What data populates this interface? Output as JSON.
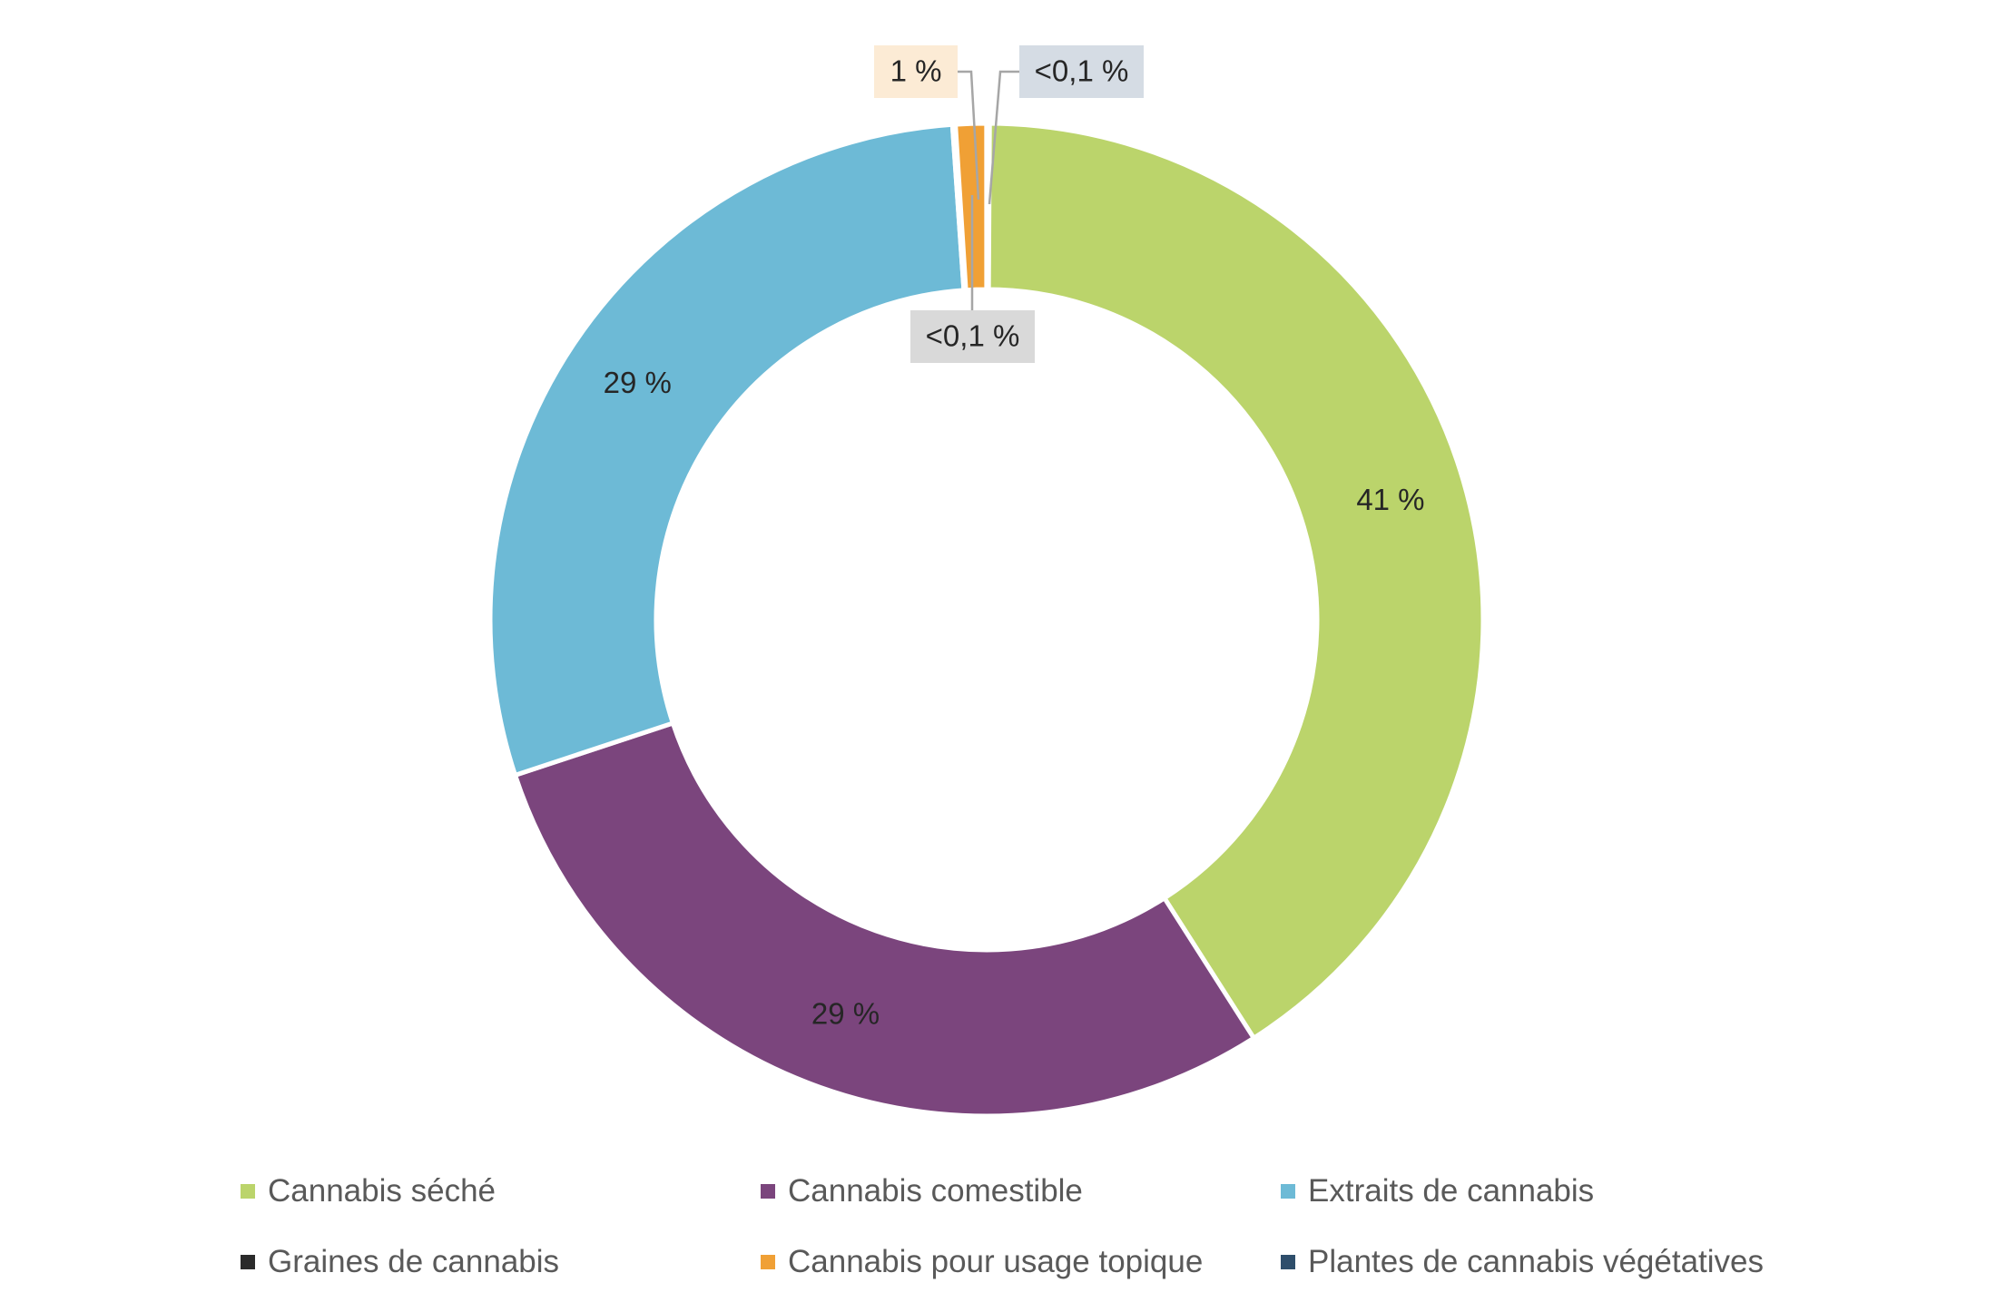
{
  "chart_data": {
    "type": "pie",
    "donut": true,
    "title": "",
    "categories": [
      "Cannabis séché",
      "Cannabis comestible",
      "Extraits de cannabis",
      "Graines de cannabis",
      "Cannabis pour usage topique",
      "Plantes de cannabis végétatives"
    ],
    "values": [
      41,
      29,
      29,
      0.05,
      1,
      0.05
    ],
    "value_labels": [
      "41 %",
      "29 %",
      "29 %",
      "<0,1 %",
      "1 %",
      "<0,1 %"
    ],
    "colors": [
      "#BBD46B",
      "#7B457D",
      "#6DBAD6",
      "#2B2B2B",
      "#F0A035",
      "#2E4E6B"
    ],
    "label_box_colors": [
      "",
      "",
      "",
      "#D9D9D9",
      "#FCEBD5",
      "#D5DCE4"
    ],
    "start_angle_deg": 0,
    "legend": {
      "position": "bottom"
    }
  }
}
